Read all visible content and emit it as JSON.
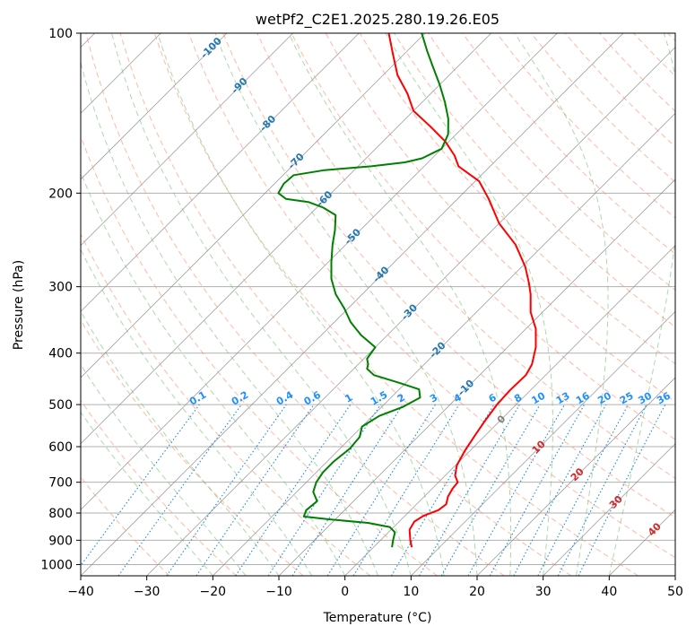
{
  "chart_data": {
    "type": "line",
    "title": "wetPf2_C2E1.2025.280.19.26.E05",
    "xlabel": "Temperature (°C)",
    "ylabel": "Pressure (hPa)",
    "xlim": [
      -40,
      50
    ],
    "ylim": [
      1050,
      100
    ],
    "xticks": [
      -40,
      -30,
      -20,
      -10,
      0,
      10,
      20,
      30,
      40,
      50
    ],
    "yticks": [
      100,
      200,
      300,
      400,
      500,
      600,
      700,
      800,
      900,
      1000
    ],
    "yscale": "log",
    "skew": "45deg",
    "colors": {
      "temperature": "#ff0000",
      "dewpoint": "#008000",
      "dry_adiabat": "#ff8c66",
      "moist_adiabat": "#66bb66",
      "mixing_ratio": "#1e88e5",
      "isotherm": "#808080",
      "grid": "#b0b0b0",
      "isotherm_label": "#1f77b4",
      "mixing_label": "#1e90ff",
      "warm_label": "#d62728",
      "zero_label": "#808080"
    },
    "series": [
      {
        "name": "Temperature",
        "points": [
          [
            928,
            5.8
          ],
          [
            900,
            4.5
          ],
          [
            860,
            2.8
          ],
          [
            830,
            2.3
          ],
          [
            810,
            2.8
          ],
          [
            790,
            4.2
          ],
          [
            770,
            4.5
          ],
          [
            745,
            3.6
          ],
          [
            720,
            3.1
          ],
          [
            700,
            2.9
          ],
          [
            680,
            1.5
          ],
          [
            650,
            0.2
          ],
          [
            610,
            -0.8
          ],
          [
            570,
            -1.6
          ],
          [
            540,
            -2.2
          ],
          [
            500,
            -2.9
          ],
          [
            470,
            -3.1
          ],
          [
            440,
            -3.0
          ],
          [
            420,
            -3.7
          ],
          [
            390,
            -5.7
          ],
          [
            360,
            -8.5
          ],
          [
            335,
            -11.8
          ],
          [
            310,
            -14.5
          ],
          [
            295,
            -16.5
          ],
          [
            275,
            -19.5
          ],
          [
            250,
            -24.3
          ],
          [
            228,
            -30.0
          ],
          [
            205,
            -35.3
          ],
          [
            190,
            -39.4
          ],
          [
            178,
            -44.8
          ],
          [
            170,
            -47.0
          ],
          [
            160,
            -50.5
          ],
          [
            150,
            -55.0
          ],
          [
            140,
            -60.0
          ],
          [
            130,
            -63.5
          ],
          [
            120,
            -67.8
          ],
          [
            110,
            -71.5
          ],
          [
            100,
            -75.5
          ]
        ]
      },
      {
        "name": "Dewpoint",
        "points": [
          [
            928,
            2.8
          ],
          [
            900,
            1.9
          ],
          [
            870,
            1.0
          ],
          [
            850,
            -0.6
          ],
          [
            835,
            -4.5
          ],
          [
            822,
            -11.0
          ],
          [
            812,
            -15.2
          ],
          [
            790,
            -15.8
          ],
          [
            760,
            -15.5
          ],
          [
            730,
            -17.5
          ],
          [
            700,
            -18.5
          ],
          [
            670,
            -19.0
          ],
          [
            640,
            -19.0
          ],
          [
            605,
            -18.5
          ],
          [
            575,
            -18.8
          ],
          [
            550,
            -20.0
          ],
          [
            525,
            -19.0
          ],
          [
            505,
            -16.8
          ],
          [
            485,
            -15.6
          ],
          [
            468,
            -17.0
          ],
          [
            455,
            -21.0
          ],
          [
            440,
            -26.0
          ],
          [
            428,
            -28.0
          ],
          [
            420,
            -28.5
          ],
          [
            410,
            -29.5
          ],
          [
            390,
            -30.0
          ],
          [
            370,
            -34.0
          ],
          [
            350,
            -37.5
          ],
          [
            330,
            -40.5
          ],
          [
            310,
            -44.0
          ],
          [
            290,
            -47.0
          ],
          [
            270,
            -49.5
          ],
          [
            250,
            -52.0
          ],
          [
            235,
            -53.8
          ],
          [
            220,
            -56.0
          ],
          [
            213,
            -59.0
          ],
          [
            208,
            -62.0
          ],
          [
            205,
            -66.0
          ],
          [
            200,
            -68.0
          ],
          [
            192,
            -68.6
          ],
          [
            185,
            -68.4
          ],
          [
            181,
            -64.5
          ],
          [
            178,
            -58.0
          ],
          [
            175,
            -53.5
          ],
          [
            172,
            -51.5
          ],
          [
            165,
            -50.0
          ],
          [
            155,
            -51.2
          ],
          [
            145,
            -53.5
          ],
          [
            135,
            -56.5
          ],
          [
            125,
            -60.0
          ],
          [
            115,
            -64.0
          ],
          [
            108,
            -67.0
          ],
          [
            100,
            -70.5
          ]
        ]
      }
    ],
    "isotherm_labels": [
      {
        "text": "-100",
        "t": -100
      },
      {
        "text": "-90",
        "t": -90
      },
      {
        "text": "-80",
        "t": -80
      },
      {
        "text": "-70",
        "t": -70
      },
      {
        "text": "-60",
        "t": -60
      },
      {
        "text": "-50",
        "t": -50
      },
      {
        "text": "-40",
        "t": -40
      },
      {
        "text": "-30",
        "t": -30
      },
      {
        "text": "-20",
        "t": -20
      },
      {
        "text": "-10",
        "t": -10
      }
    ],
    "zero_label": {
      "text": "0",
      "t": 0
    },
    "warm_labels": [
      {
        "text": "10",
        "t": 10
      },
      {
        "text": "20",
        "t": 20
      },
      {
        "text": "30",
        "t": 30
      },
      {
        "text": "40",
        "t": 40
      }
    ],
    "mixing_ratios": [
      "0.1",
      "0.2",
      "0.4",
      "0.6",
      "1",
      "1.5",
      "2",
      "3",
      "4",
      "6",
      "8",
      "10",
      "13",
      "16",
      "20",
      "25",
      "30",
      "36"
    ]
  }
}
